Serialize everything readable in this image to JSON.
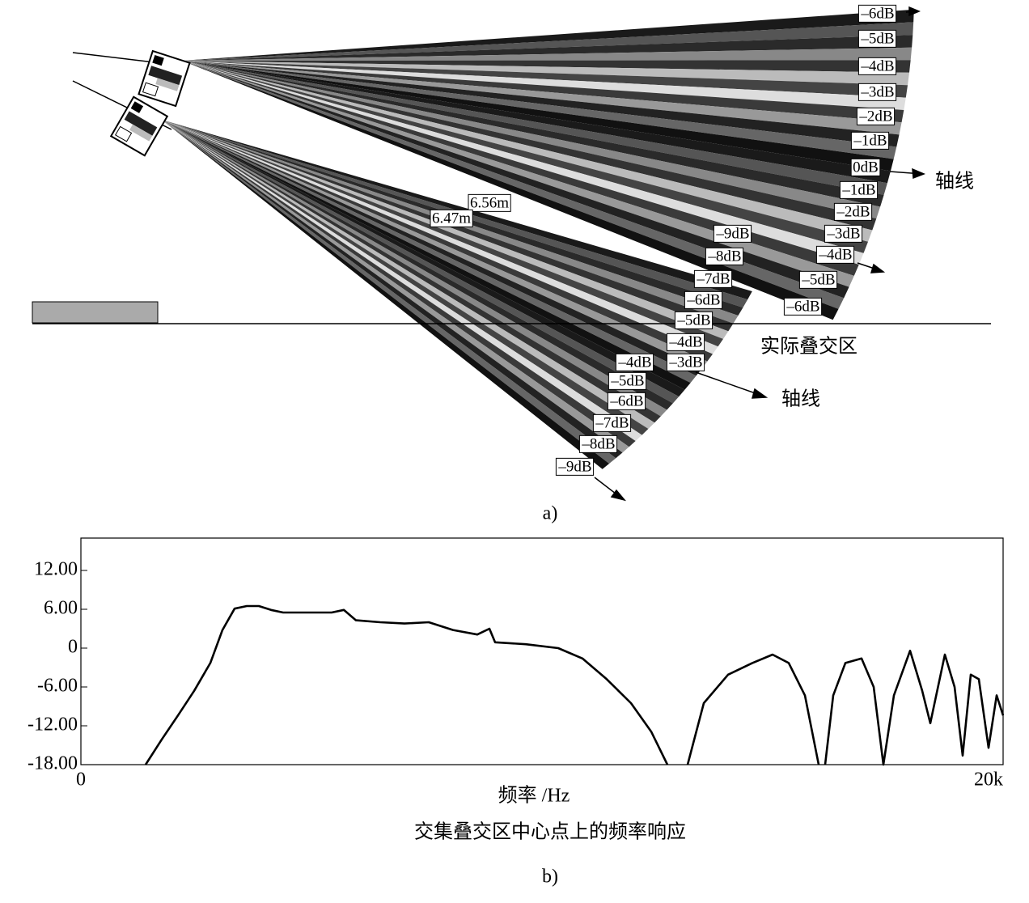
{
  "figure_a": {
    "upper_fan_labels": [
      "–6dB",
      "–5dB",
      "–4dB",
      "–3dB",
      "–2dB",
      "–1dB",
      "0dB",
      "–1dB",
      "–2dB",
      "–3dB",
      "–4dB",
      "–5dB",
      "–6dB"
    ],
    "upper_axis_label": "轴线",
    "lower_fan_labels": [
      "–9dB",
      "–8dB",
      "–7dB",
      "–6dB",
      "–5dB",
      "–4dB",
      "–3dB",
      "–4dB",
      "–5dB",
      "–6dB",
      "–7dB",
      "–8dB",
      "–9dB"
    ],
    "lower_axis_label": "轴线",
    "distance_labels": [
      "6.56m",
      "6.47m"
    ],
    "overlap_label": "实际叠交区",
    "caption": "a)"
  },
  "chart_data": {
    "type": "line",
    "title": "交集叠交区中心点上的频率响应",
    "x_label": "频率 /Hz",
    "caption": "b)",
    "color": "#000000",
    "x": [
      1404,
      1754,
      2105,
      2456,
      2807,
      3070,
      3333,
      3596,
      3860,
      4123,
      4386,
      4737,
      5088,
      5439,
      5702,
      5965,
      6491,
      7018,
      7544,
      8070,
      8596,
      8860,
      8982,
      9649,
      10351,
      10877,
      11404,
      11930,
      12368,
      12719,
      12940,
      13158,
      13509,
      14035,
      14561,
      15000,
      15351,
      15702,
      16000,
      16070,
      16140,
      16316,
      16579,
      16930,
      17193,
      17404,
      17632,
      17982,
      18246,
      18421,
      18737,
      18947,
      19123,
      19298,
      19474,
      19684,
      19860,
      20000
    ],
    "values": [
      -18,
      -14.1,
      -10.4,
      -6.6,
      -2.3,
      2.8,
      6.1,
      6.5,
      6.5,
      5.9,
      5.5,
      5.5,
      5.5,
      5.5,
      5.9,
      4.3,
      4,
      3.8,
      4,
      2.8,
      2.1,
      3,
      0.9,
      0.6,
      0,
      -1.6,
      -4.8,
      -8.5,
      -12.9,
      -18,
      null,
      -18,
      -8.5,
      -4.1,
      -2.3,
      -1,
      -2.3,
      -7.3,
      -18,
      null,
      -18,
      -7.3,
      -2.3,
      -1.6,
      -6,
      -18,
      -7.3,
      -0.4,
      -6.6,
      -11.6,
      -1,
      -6,
      -16.6,
      -4.1,
      -4.8,
      -15.4,
      -7.3,
      -10.4
    ],
    "xlim": [
      0,
      20000
    ],
    "xticks": [
      0,
      {
        "value": 20000,
        "label": "20k"
      }
    ],
    "ylim": [
      -18,
      17
    ],
    "yticks": [
      {
        "value": 12,
        "label": "12.00"
      },
      {
        "value": 6,
        "label": "6.00"
      },
      0,
      {
        "value": -6,
        "label": "-6.00"
      },
      {
        "value": -12,
        "label": "-12.00"
      },
      {
        "value": -18,
        "label": "-18.00"
      }
    ]
  }
}
